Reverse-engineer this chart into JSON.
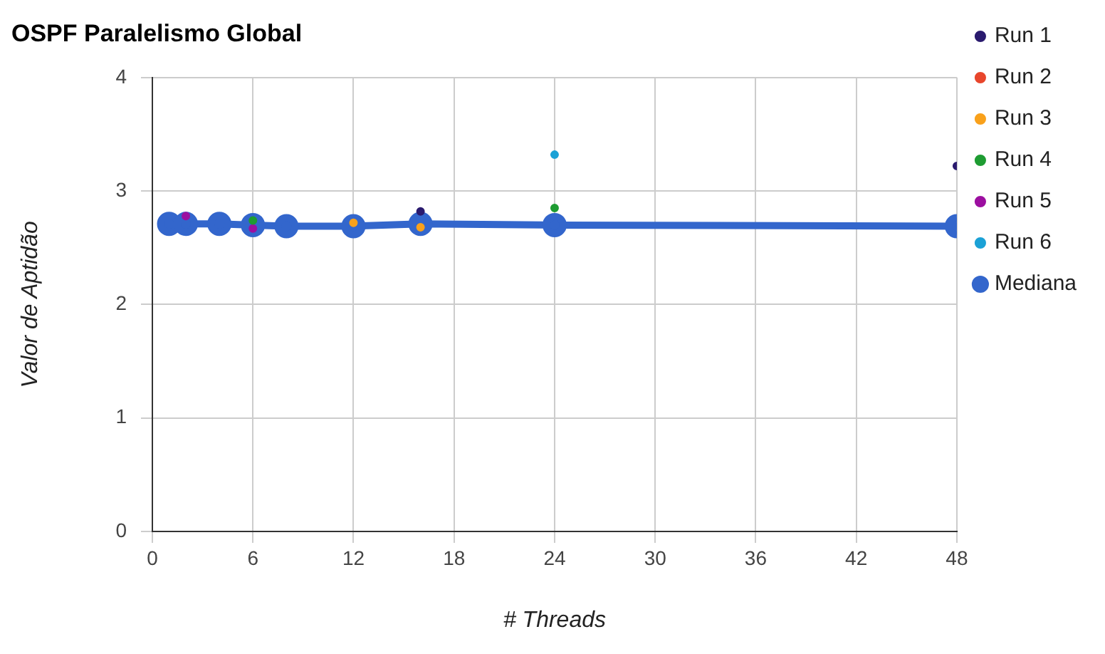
{
  "chart_data": {
    "type": "scatter",
    "title": "OSPF Paralelismo Global",
    "xlabel": "# Threads",
    "ylabel": "Valor de Aptidão",
    "x": [
      1,
      2,
      4,
      6,
      8,
      12,
      16,
      24,
      48
    ],
    "series": [
      {
        "name": "Run 1",
        "color": "#2a1a6e",
        "values": [
          null,
          null,
          null,
          null,
          null,
          null,
          2.82,
          null,
          3.22
        ]
      },
      {
        "name": "Run 2",
        "color": "#e8462c",
        "values": [
          null,
          null,
          null,
          null,
          null,
          null,
          null,
          null,
          null
        ]
      },
      {
        "name": "Run 3",
        "color": "#f9a11b",
        "values": [
          null,
          null,
          null,
          null,
          null,
          2.72,
          2.68,
          null,
          null
        ]
      },
      {
        "name": "Run 4",
        "color": "#1e9c32",
        "values": [
          null,
          null,
          null,
          2.74,
          null,
          null,
          null,
          2.85,
          null
        ]
      },
      {
        "name": "Run 5",
        "color": "#9c0fa0",
        "values": [
          null,
          2.78,
          null,
          2.67,
          null,
          null,
          null,
          null,
          null
        ]
      },
      {
        "name": "Run 6",
        "color": "#1ba1d6",
        "values": [
          null,
          null,
          null,
          null,
          null,
          null,
          null,
          3.32,
          null
        ]
      },
      {
        "name": "Mediana",
        "type": "line",
        "color": "#3366cc",
        "values": [
          2.71,
          2.71,
          2.71,
          2.7,
          2.69,
          2.69,
          2.71,
          2.7,
          2.69
        ]
      }
    ],
    "xlim": [
      0,
      48
    ],
    "xticks": [
      0,
      6,
      12,
      18,
      24,
      30,
      36,
      42,
      48
    ],
    "ylim": [
      0,
      4
    ],
    "yticks": [
      0,
      1,
      2,
      3,
      4
    ],
    "grid": true,
    "legend": "right",
    "marker": "circle"
  }
}
